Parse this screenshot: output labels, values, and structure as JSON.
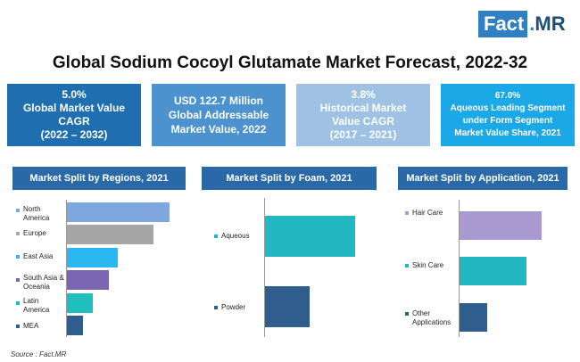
{
  "logo": {
    "part1": "Fact",
    "dot": ".",
    "part2": "MR"
  },
  "title": "Global Sodium Cocoyl Glutamate Market Forecast, 2022-32",
  "kpis": [
    {
      "lines": [
        "5.0%",
        "Global Market Value",
        "CAGR",
        "(2022 – 2032)"
      ],
      "color": "#1f6eb0"
    },
    {
      "lines": [
        "USD 122.7 Million",
        "Global Addressable",
        "Market Value, 2022"
      ],
      "color": "#4c92cf"
    },
    {
      "lines": [
        "3.8%",
        "Historical Market",
        "Value CAGR",
        "(2017 – 2021)"
      ],
      "color": "#9fc2e4"
    },
    {
      "lines": [
        "67.0%",
        "Aqueous Leading Segment",
        "under Form Segment",
        "Market Value Share, 2021"
      ],
      "color": "#1aa8e6"
    }
  ],
  "chart_data": [
    {
      "type": "bar",
      "orientation": "horizontal",
      "title": "Market Split by Regions, 2021",
      "categories": [
        "North America",
        "Europe",
        "East Asia",
        "South Asia & Oceania",
        "Latin America",
        "MEA"
      ],
      "values": [
        32,
        27,
        16,
        13,
        8,
        5
      ],
      "colors": [
        "#7fa7df",
        "#a6a6a6",
        "#29b8f0",
        "#7a65b3",
        "#1fbfbf",
        "#2e5d8e"
      ],
      "xlim": [
        0,
        34
      ]
    },
    {
      "type": "bar",
      "orientation": "horizontal",
      "title": "Market Split by Foam, 2021",
      "categories": [
        "Aqueous",
        "Powder"
      ],
      "values": [
        67,
        33
      ],
      "colors": [
        "#22b8c2",
        "#2e5d8e"
      ],
      "xlim": [
        0,
        80
      ]
    },
    {
      "type": "bar",
      "orientation": "horizontal",
      "title": "Market Split by Application, 2021",
      "categories": [
        "Hair Care",
        "Skin Care",
        "Other Applications"
      ],
      "values": [
        45,
        37,
        15
      ],
      "colors": [
        "#a89ad0",
        "#22b8c2",
        "#2e5d8e"
      ],
      "xlim": [
        0,
        50
      ]
    }
  ],
  "source": "Source : Fact.MR"
}
